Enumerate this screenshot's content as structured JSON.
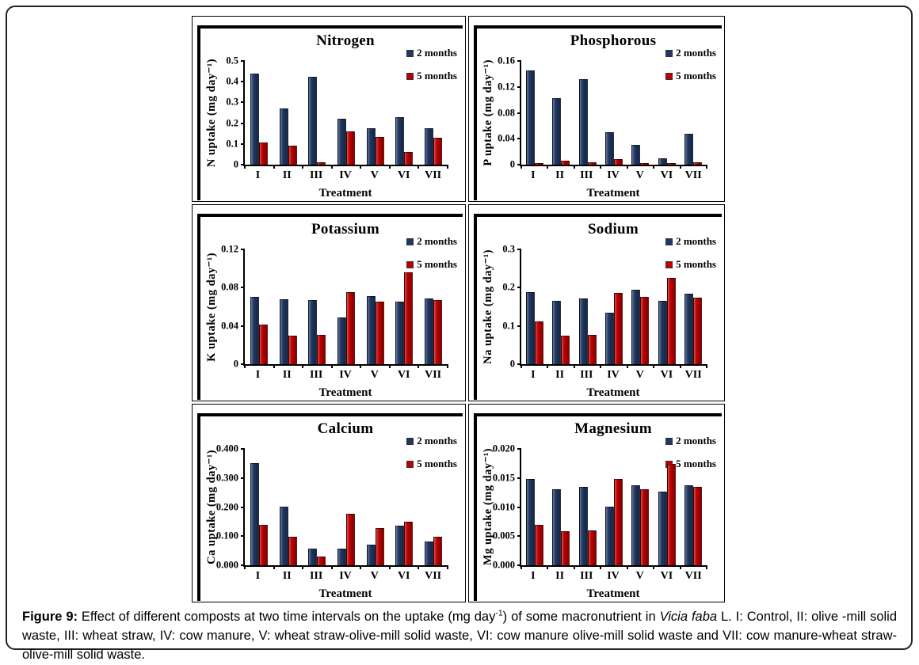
{
  "caption": {
    "label": "Figure 9:",
    "part1": " Effect of different composts at two time intervals on the uptake (mg day",
    "sup": "-1",
    "part2": ") of some macronutrient in ",
    "italic": "Vicia faba",
    "part3": " L. I: Control, II: olive -mill solid waste, III: wheat straw, IV: cow manure, V: wheat straw-olive-mill solid waste, VI: cow manure olive-mill solid waste and VII: cow manure-wheat straw-olive-mill solid waste."
  },
  "colors": {
    "series_2_months": "#1F3864",
    "series_5_months": "#C00000"
  },
  "chart_data": [
    {
      "type": "bar",
      "title": "Nitrogen",
      "ylabel": "N uptake (mg day⁻¹)",
      "xlabel": "Treatment",
      "categories": [
        "I",
        "II",
        "III",
        "IV",
        "V",
        "VI",
        "VII"
      ],
      "ylim": [
        0,
        0.5
      ],
      "yticks": [
        "0",
        "0.1",
        "0.2",
        "0.3",
        "0.4",
        "0.5"
      ],
      "legend_position": "top-right",
      "grid": false,
      "series": [
        {
          "name": "2 months",
          "color": "#1F3864",
          "values": [
            0.44,
            0.27,
            0.425,
            0.22,
            0.175,
            0.23,
            0.175
          ]
        },
        {
          "name": "5 months",
          "color": "#C00000",
          "values": [
            0.105,
            0.09,
            0.012,
            0.16,
            0.135,
            0.06,
            0.13
          ]
        }
      ]
    },
    {
      "type": "bar",
      "title": "Phosphorous",
      "ylabel": "P uptake (mg day⁻¹)",
      "xlabel": "Treatment",
      "categories": [
        "I",
        "II",
        "III",
        "IV",
        "V",
        "VI",
        "VII"
      ],
      "ylim": [
        0,
        0.16
      ],
      "yticks": [
        "0",
        "0.04",
        "0.08",
        "0.12",
        "0.16"
      ],
      "legend_position": "top-right",
      "grid": false,
      "series": [
        {
          "name": "2 months",
          "color": "#1F3864",
          "values": [
            0.145,
            0.103,
            0.132,
            0.05,
            0.03,
            0.01,
            0.048
          ]
        },
        {
          "name": "5 months",
          "color": "#C00000",
          "values": [
            0.002,
            0.006,
            0.004,
            0.009,
            0.002,
            0.002,
            0.004
          ]
        }
      ]
    },
    {
      "type": "bar",
      "title": "Potassium",
      "ylabel": "K uptake (mg day⁻¹)",
      "xlabel": "Treatment",
      "categories": [
        "I",
        "II",
        "III",
        "IV",
        "V",
        "VI",
        "VII"
      ],
      "ylim": [
        0,
        0.12
      ],
      "yticks": [
        "0",
        "0.04",
        "0.08",
        "0.12"
      ],
      "legend_position": "top-right",
      "grid": false,
      "series": [
        {
          "name": "2 months",
          "color": "#1F3864",
          "values": [
            0.07,
            0.068,
            0.067,
            0.049,
            0.071,
            0.065,
            0.069
          ]
        },
        {
          "name": "5 months",
          "color": "#C00000",
          "values": [
            0.041,
            0.03,
            0.031,
            0.075,
            0.065,
            0.096,
            0.067
          ]
        }
      ]
    },
    {
      "type": "bar",
      "title": "Sodium",
      "ylabel": "Na uptake (mg day⁻¹)",
      "xlabel": "Treatment",
      "categories": [
        "I",
        "II",
        "III",
        "IV",
        "V",
        "VI",
        "VII"
      ],
      "ylim": [
        0,
        0.3
      ],
      "yticks": [
        "0",
        "0.1",
        "0.2",
        "0.3"
      ],
      "legend_position": "top-right",
      "grid": false,
      "series": [
        {
          "name": "2 months",
          "color": "#1F3864",
          "values": [
            0.188,
            0.165,
            0.172,
            0.135,
            0.195,
            0.165,
            0.185
          ]
        },
        {
          "name": "5 months",
          "color": "#C00000",
          "values": [
            0.111,
            0.074,
            0.076,
            0.187,
            0.176,
            0.226,
            0.173
          ]
        }
      ]
    },
    {
      "type": "bar",
      "title": "Calcium",
      "ylabel": "Ca uptake (mg day⁻¹)",
      "xlabel": "Treatment",
      "categories": [
        "I",
        "II",
        "III",
        "IV",
        "V",
        "VI",
        "VII"
      ],
      "ylim": [
        0,
        0.4
      ],
      "yticks": [
        "0.000",
        "0.100",
        "0.200",
        "0.300",
        "0.400"
      ],
      "legend_position": "top-right",
      "grid": false,
      "series": [
        {
          "name": "2 months",
          "color": "#1F3864",
          "values": [
            0.352,
            0.202,
            0.057,
            0.057,
            0.071,
            0.136,
            0.082
          ]
        },
        {
          "name": "5 months",
          "color": "#C00000",
          "values": [
            0.138,
            0.097,
            0.03,
            0.177,
            0.127,
            0.151,
            0.098
          ]
        }
      ]
    },
    {
      "type": "bar",
      "title": "Magnesium",
      "ylabel": "Mg uptake (mg day⁻¹)",
      "xlabel": "Treatment",
      "categories": [
        "I",
        "II",
        "III",
        "IV",
        "V",
        "VI",
        "VII"
      ],
      "ylim": [
        0,
        0.02
      ],
      "yticks": [
        "0.000",
        "0.005",
        "0.010",
        "0.015",
        "0.020"
      ],
      "legend_position": "top-right",
      "grid": false,
      "series": [
        {
          "name": "2 months",
          "color": "#1F3864",
          "values": [
            0.0148,
            0.013,
            0.0135,
            0.0101,
            0.0137,
            0.0127,
            0.0137
          ]
        },
        {
          "name": "5 months",
          "color": "#C00000",
          "values": [
            0.007,
            0.0058,
            0.006,
            0.0148,
            0.0131,
            0.0174,
            0.0135
          ]
        }
      ]
    }
  ]
}
